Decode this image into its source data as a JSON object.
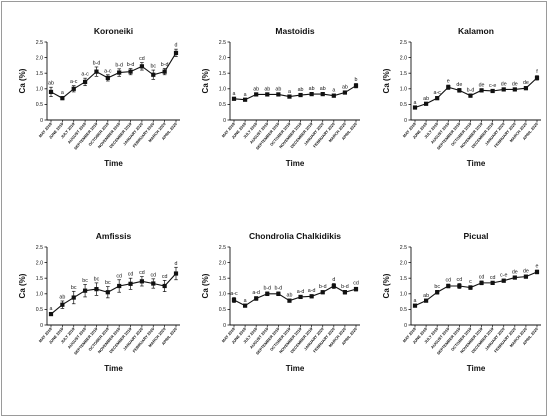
{
  "chart_data": [
    {
      "type": "line",
      "title": "Koroneiki",
      "xlabel": "Time",
      "ylabel": "Ca (%)",
      "ylim": [
        0,
        2.5
      ],
      "yticks": [
        "0",
        "0.5",
        "1.0",
        "1.5",
        "2.0",
        "2.5"
      ],
      "categories": [
        "MAY 2019",
        "JUNE 2019",
        "JULY 2019",
        "AUGUST 2019",
        "SEPTEMBER 2019",
        "OCTOBER 2019",
        "NOVEMBER 2019",
        "DECEMBER 2019",
        "JANUARY 2020",
        "FEBRUARY 2020",
        "MARCH 2020",
        "APRIL 2020"
      ],
      "values": [
        0.9,
        0.7,
        1.0,
        1.22,
        1.55,
        1.35,
        1.52,
        1.55,
        1.72,
        1.45,
        1.55,
        2.15
      ],
      "errors": [
        0.15,
        0.05,
        0.1,
        0.12,
        0.15,
        0.1,
        0.12,
        0.1,
        0.12,
        0.15,
        0.1,
        0.12
      ],
      "letters": [
        "ab",
        "a",
        "a-c",
        "a-c",
        "b-d",
        "a-c",
        "b-d",
        "b-d",
        "cd",
        "bc",
        "b-d",
        "d"
      ]
    },
    {
      "type": "line",
      "title": "Mastoidis",
      "xlabel": "Time",
      "ylabel": "Ca (%)",
      "ylim": [
        0,
        2.5
      ],
      "yticks": [
        "0",
        "0.5",
        "1.0",
        "1.5",
        "2.0",
        "2.5"
      ],
      "categories": [
        "MAY 2019",
        "JUNE 2019",
        "JULY 2019",
        "AUGUST 2019",
        "SEPTEMBER 2019",
        "OCTOBER 2019",
        "NOVEMBER 2019",
        "DECEMBER 2019",
        "JANUARY 2020",
        "FEBRUARY 2020",
        "MARCH 2020",
        "APRIL 2020"
      ],
      "values": [
        0.68,
        0.65,
        0.82,
        0.82,
        0.82,
        0.75,
        0.8,
        0.83,
        0.83,
        0.78,
        0.88,
        1.1
      ],
      "errors": [
        0.04,
        0.04,
        0.05,
        0.05,
        0.05,
        0.04,
        0.05,
        0.05,
        0.05,
        0.05,
        0.05,
        0.07
      ],
      "letters": [
        "a",
        "a",
        "ab",
        "ab",
        "ab",
        "a",
        "ab",
        "ab",
        "ab",
        "a",
        "ab",
        "b"
      ]
    },
    {
      "type": "line",
      "title": "Kalamon",
      "xlabel": "Time",
      "ylabel": "Ca (%)",
      "ylim": [
        0,
        2.5
      ],
      "yticks": [
        "0",
        "0.5",
        "1.0",
        "1.5",
        "2.0",
        "2.5"
      ],
      "categories": [
        "MAY 2019",
        "JUNE 2019",
        "JULY 2019",
        "AUGUST 2019",
        "SEPTEMBER 2019",
        "OCTOBER 2019",
        "NOVEMBER 2019",
        "DECEMBER 2019",
        "JANUARY 2020",
        "FEBRUARY 2020",
        "MARCH 2020",
        "APRIL 2020"
      ],
      "values": [
        0.4,
        0.52,
        0.7,
        1.05,
        0.95,
        0.78,
        0.95,
        0.93,
        0.98,
        0.98,
        1.02,
        1.35
      ],
      "errors": [
        0.03,
        0.04,
        0.05,
        0.07,
        0.06,
        0.05,
        0.05,
        0.05,
        0.04,
        0.04,
        0.05,
        0.07
      ],
      "letters": [
        "a",
        "ab",
        "a-c",
        "e",
        "de",
        "b-d",
        "de",
        "c-e",
        "de",
        "de",
        "de",
        "f"
      ]
    },
    {
      "type": "line",
      "title": "Amfissis",
      "xlabel": "Time",
      "ylabel": "Ca (%)",
      "ylim": [
        0,
        2.5
      ],
      "yticks": [
        "0",
        "0.5",
        "1.0",
        "1.5",
        "2.0",
        "2.5"
      ],
      "categories": [
        "MAY 2019",
        "JUNE 2019",
        "JULY 2019",
        "AUGUST 2019",
        "SEPTEMBER 2019",
        "OCTOBER 2019",
        "NOVEMBER 2019",
        "DECEMBER 2019",
        "JANUARY 2020",
        "FEBRUARY 2020",
        "MARCH 2020",
        "APRIL 2020"
      ],
      "values": [
        0.35,
        0.65,
        0.88,
        1.1,
        1.15,
        1.05,
        1.25,
        1.32,
        1.4,
        1.33,
        1.25,
        1.65
      ],
      "errors": [
        0.05,
        0.12,
        0.2,
        0.2,
        0.2,
        0.18,
        0.2,
        0.18,
        0.15,
        0.15,
        0.18,
        0.2
      ],
      "letters": [
        "a",
        "ab",
        "bc",
        "bc",
        "bc",
        "bc",
        "cd",
        "cd",
        "cd",
        "cd",
        "cd",
        "d"
      ]
    },
    {
      "type": "line",
      "title": "Chondrolia Chalkidikis",
      "xlabel": "Time",
      "ylabel": "Ca (%)",
      "ylim": [
        0,
        2.5
      ],
      "yticks": [
        "0",
        "0.5",
        "1.0",
        "1.5",
        "2.0",
        "2.5"
      ],
      "categories": [
        "MAY 2019",
        "JUNE 2019",
        "JULY 2019",
        "AUGUST 2019",
        "SEPTEMBER 2019",
        "OCTOBER 2019",
        "NOVEMBER 2019",
        "DECEMBER 2019",
        "JANUARY 2020",
        "FEBRUARY 2020",
        "MARCH 2020",
        "APRIL 2020"
      ],
      "values": [
        0.8,
        0.62,
        0.85,
        1.0,
        1.0,
        0.78,
        0.9,
        0.92,
        1.05,
        1.25,
        1.05,
        1.15
      ],
      "errors": [
        0.08,
        0.04,
        0.06,
        0.06,
        0.06,
        0.05,
        0.05,
        0.05,
        0.05,
        0.08,
        0.06,
        0.06
      ],
      "letters": [
        "a-c",
        "a",
        "a-d",
        "b-d",
        "b-d",
        "ab",
        "a-d",
        "a-d",
        "b-d",
        "d",
        "b-d",
        "cd"
      ]
    },
    {
      "type": "line",
      "title": "Picual",
      "xlabel": "Time",
      "ylabel": "Ca (%)",
      "ylim": [
        0,
        2.5
      ],
      "yticks": [
        "0",
        "0.5",
        "1.0",
        "1.5",
        "2.0",
        "2.5"
      ],
      "categories": [
        "MAY 2019",
        "JUNE 2019",
        "JULY 2019",
        "AUGUST 2019",
        "SEPTEMBER 2019",
        "OCTOBER 2019",
        "NOVEMBER 2019",
        "DECEMBER 2019",
        "JANUARY 2020",
        "FEBRUARY 2020",
        "MARCH 2020",
        "APRIL 2020"
      ],
      "values": [
        0.62,
        0.78,
        1.05,
        1.25,
        1.25,
        1.2,
        1.35,
        1.35,
        1.42,
        1.52,
        1.55,
        1.7
      ],
      "errors": [
        0.03,
        0.04,
        0.06,
        0.06,
        0.08,
        0.06,
        0.06,
        0.05,
        0.05,
        0.05,
        0.05,
        0.06
      ],
      "letters": [
        "a",
        "ab",
        "bc",
        "cd",
        "cd",
        "c",
        "cd",
        "cd",
        "c-e",
        "de",
        "de",
        "e"
      ]
    }
  ]
}
